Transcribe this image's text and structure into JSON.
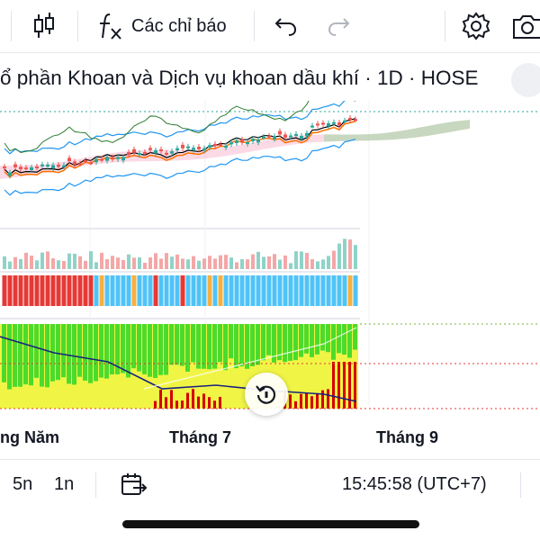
{
  "toolbar": {
    "indicators_label": "Các chỉ báo",
    "icons": [
      "candles-icon",
      "fx-icon",
      "undo-icon",
      "redo-icon",
      "settings-icon",
      "camera-icon"
    ]
  },
  "chart": {
    "title": "ổ phần Khoan và Dịch vụ khoan dầu khí · 1D · HOSE",
    "x_labels": [
      "ng Năm",
      "Tháng 7",
      "Tháng 9"
    ],
    "colors": {
      "up": "#26a69a",
      "down": "#ef5350",
      "cloud_up": "#a5d6a7",
      "cloud_down": "#f8bbd0",
      "bollinger": "#2196f3",
      "ma_orange": "#ff6d00",
      "ma_black": "#000000",
      "lagging": "#2e7d32",
      "sentiment_green": "#4cdb2c",
      "sentiment_yellow": "#f0f545",
      "sentiment_red": "#d50000",
      "signal_cyan": "#4fc3f7",
      "signal_red": "#e53935",
      "signal_orange": "#f5b041"
    }
  },
  "bottombar": {
    "interval_5n": "5n",
    "interval_1n": "1n",
    "clock": "15:45:58 (UTC+7)"
  }
}
